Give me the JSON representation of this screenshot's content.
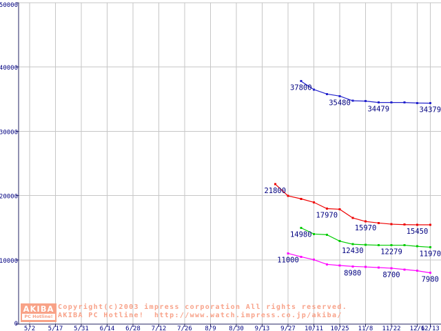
{
  "page": {
    "background": "#ffffff"
  },
  "branding": {
    "logo": {
      "line1": "AKIBA",
      "line2": "PC Hotline!",
      "bg_color": "#f8a287",
      "text_color": "#ffffff"
    },
    "copyright_line1": "Copyright(c)2003 impress corporation All rights reserved.",
    "copyright_line2": "AKIBA PC Hotline!  http://www.watch.impress.co.jp/akiba/",
    "text_color": "#f8a289"
  },
  "chart_data": {
    "type": "line",
    "title": "",
    "xlabel": "",
    "ylabel": "",
    "grid": true,
    "legend": "none",
    "axis_color": "#202060",
    "grid_color": "#c6c6c6",
    "label_color": "#000080",
    "y_axis": {
      "min": 0,
      "max": 50000,
      "tick_interval": 10000,
      "tick_labels": [
        "0",
        "10000",
        "20000",
        "30000",
        "40000",
        "50000"
      ]
    },
    "x_axis": {
      "tick_labels": [
        "5/2",
        "5/17",
        "5/31",
        "6/14",
        "6/28",
        "7/12",
        "7/26",
        "8/9",
        "8/30",
        "9/13",
        "9/27",
        "10/11",
        "10/25",
        "11/8",
        "11/22",
        "12/6",
        "12/13"
      ]
    },
    "weekly_dates": [
      "9/20",
      "9/27",
      "10/4",
      "10/11",
      "10/18",
      "10/25",
      "11/1",
      "11/8",
      "11/15",
      "11/22",
      "11/29",
      "12/6",
      "12/13"
    ],
    "series": [
      {
        "name": "price-series-blue",
        "color": "#2323cc",
        "start_date": "10/4",
        "values": [
          37800,
          36500,
          35800,
          35480,
          34750,
          34700,
          34479,
          34479,
          34479,
          34400,
          34379
        ],
        "annotations": [
          {
            "index": 0,
            "text": "37800"
          },
          {
            "index": 3,
            "text": "35480"
          },
          {
            "index": 6,
            "text": "34479"
          },
          {
            "index": 10,
            "text": "34379"
          }
        ]
      },
      {
        "name": "price-series-red",
        "color": "#ee0000",
        "start_date": "9/20",
        "values": [
          21800,
          19950,
          19500,
          18950,
          17970,
          17870,
          16530,
          15970,
          15740,
          15550,
          15480,
          15450,
          15450
        ],
        "annotations": [
          {
            "index": 0,
            "text": "21800"
          },
          {
            "index": 4,
            "text": "17970"
          },
          {
            "index": 7,
            "text": "15970"
          },
          {
            "index": 11,
            "text": "15450"
          }
        ]
      },
      {
        "name": "price-series-green",
        "color": "#00cc00",
        "start_date": "10/4",
        "values": [
          14980,
          14020,
          13910,
          12910,
          12430,
          12340,
          12280,
          12279,
          12279,
          12100,
          11970
        ],
        "annotations": [
          {
            "index": 0,
            "text": "14980"
          },
          {
            "index": 4,
            "text": "12430"
          },
          {
            "index": 7,
            "text": "12279"
          },
          {
            "index": 10,
            "text": "11970"
          }
        ]
      },
      {
        "name": "price-series-magenta",
        "color": "#ff00ff",
        "start_date": "9/27",
        "values": [
          11000,
          10480,
          10010,
          9300,
          9120,
          8980,
          8900,
          8800,
          8700,
          8500,
          8300,
          7980
        ],
        "annotations": [
          {
            "index": 0,
            "text": "11000"
          },
          {
            "index": 5,
            "text": "8980"
          },
          {
            "index": 8,
            "text": "8700"
          },
          {
            "index": 11,
            "text": "7980"
          }
        ]
      }
    ]
  }
}
